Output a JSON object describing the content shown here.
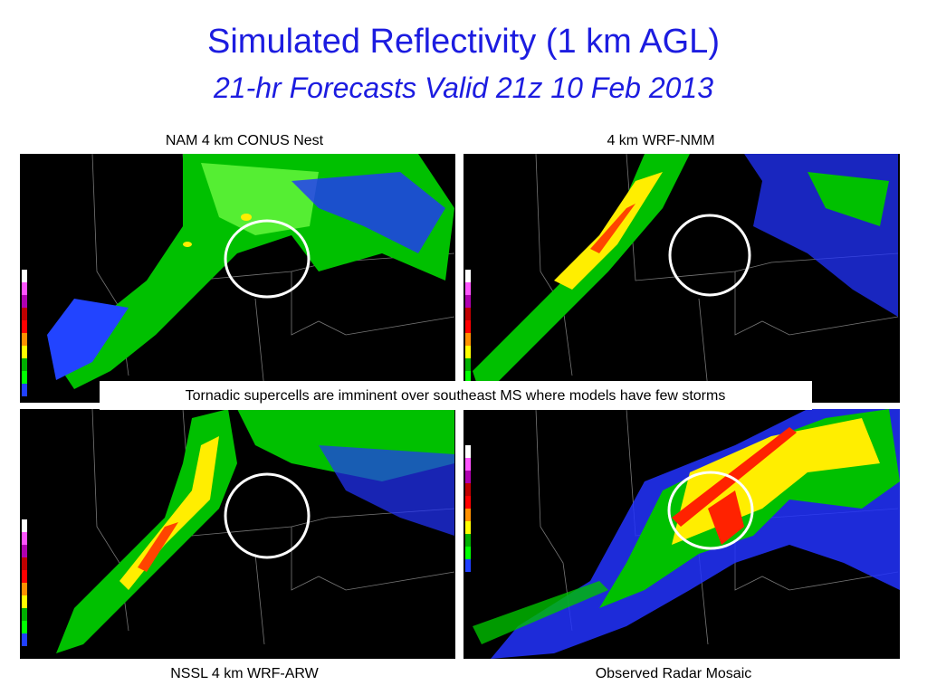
{
  "header": {
    "title": "Simulated Reflectivity (1 km AGL)",
    "subtitle": "21-hr Forecasts Valid 21z 10 Feb 2013"
  },
  "panels": [
    {
      "label": "NAM 4 km CONUS Nest"
    },
    {
      "label": "4 km WRF-NMM"
    },
    {
      "label": "NSSL 4 km WRF-ARW"
    },
    {
      "label": "Observed Radar Mosaic"
    }
  ],
  "annotation": "Tornadic supercells are imminent over southeast MS where models have few storms"
}
